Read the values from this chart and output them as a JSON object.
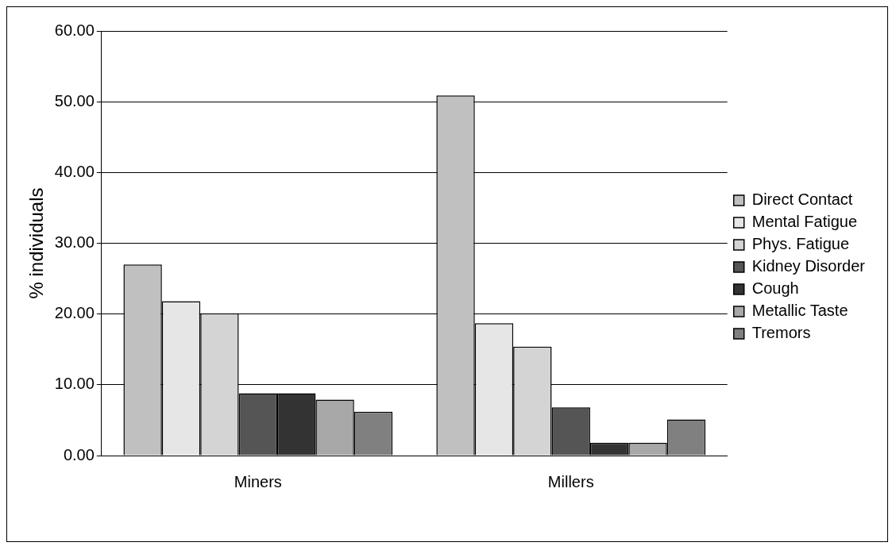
{
  "chart_data": {
    "type": "bar",
    "ylabel": "% individuals",
    "categories": [
      "Miners",
      "Millers"
    ],
    "series": [
      {
        "name": "Direct Contact",
        "color": "#c0c0c0",
        "values": [
          27.0,
          50.9
        ]
      },
      {
        "name": "Mental Fatigue",
        "color": "#e6e6e6",
        "values": [
          21.8,
          18.7
        ]
      },
      {
        "name": "Phys. Fatigue",
        "color": "#d4d4d4",
        "values": [
          20.1,
          15.4
        ]
      },
      {
        "name": "Kidney Disorder",
        "color": "#555555",
        "values": [
          8.8,
          6.8
        ]
      },
      {
        "name": "Cough",
        "color": "#333333",
        "values": [
          8.8,
          1.8
        ]
      },
      {
        "name": "Metallic Taste",
        "color": "#a8a8a8",
        "values": [
          7.9,
          1.8
        ]
      },
      {
        "name": "Tremors",
        "color": "#808080",
        "values": [
          6.2,
          5.1
        ]
      }
    ],
    "ylim": [
      0,
      60
    ],
    "yticks": [
      {
        "value": 0,
        "label": "0.00"
      },
      {
        "value": 10,
        "label": "10.00"
      },
      {
        "value": 20,
        "label": "20.00"
      },
      {
        "value": 30,
        "label": "30.00"
      },
      {
        "value": 40,
        "label": "40.00"
      },
      {
        "value": 50,
        "label": "50.00"
      },
      {
        "value": 60,
        "label": "60.00"
      }
    ],
    "grid": "y",
    "legend": "right"
  }
}
